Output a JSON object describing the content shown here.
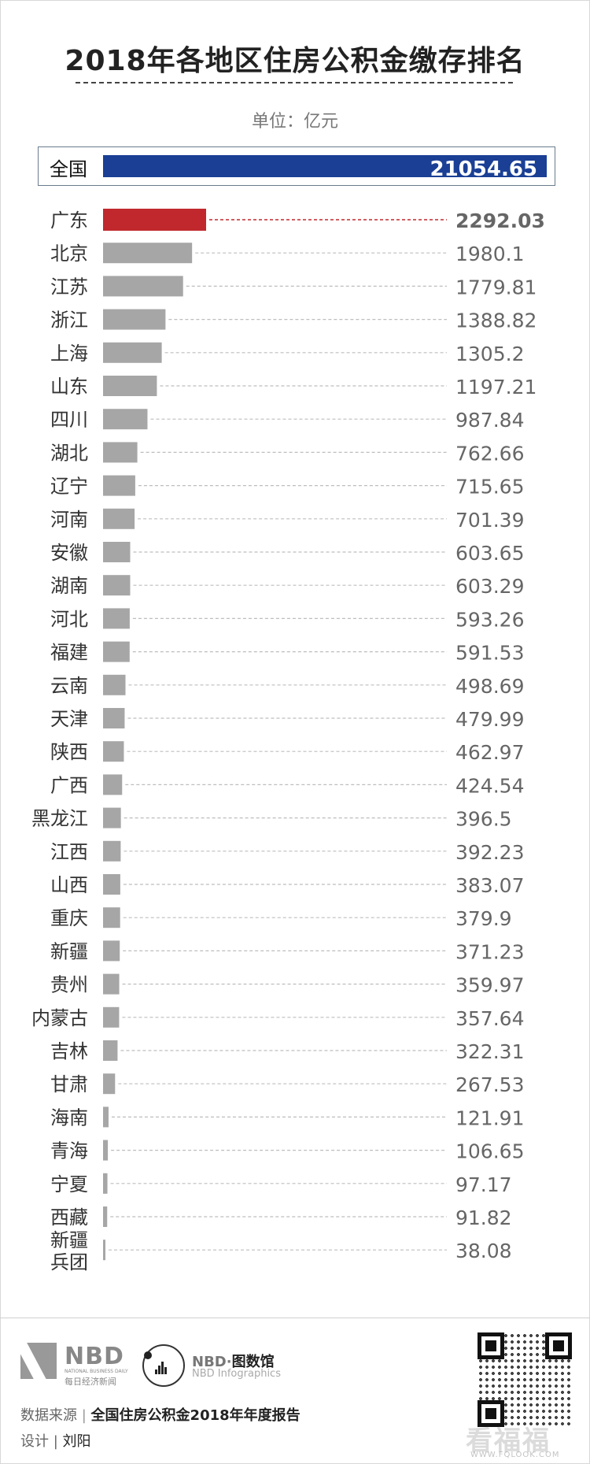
{
  "title": "2018年各地区住房公积金缴存排名",
  "unit": "单位：亿元",
  "total": {
    "label": "全国",
    "value": "21054.65"
  },
  "colors": {
    "total_bar": "#1a3f95",
    "highlight": "#c0282d",
    "bar": "#a6a6a6"
  },
  "chart_data": {
    "type": "bar",
    "orientation": "horizontal",
    "categories": [
      "广东",
      "北京",
      "江苏",
      "浙江",
      "上海",
      "山东",
      "四川",
      "湖北",
      "辽宁",
      "河南",
      "安徽",
      "湖南",
      "河北",
      "福建",
      "云南",
      "天津",
      "陕西",
      "广西",
      "黑龙江",
      "江西",
      "山西",
      "重庆",
      "新疆",
      "贵州",
      "内蒙古",
      "吉林",
      "甘肃",
      "海南",
      "青海",
      "宁夏",
      "西藏",
      "新疆兵团"
    ],
    "labels": [
      "广东",
      "北京",
      "江苏",
      "浙江",
      "上海",
      "山东",
      "四川",
      "湖北",
      "辽宁",
      "河南",
      "安徽",
      "湖南",
      "河北",
      "福建",
      "云南",
      "天津",
      "陕西",
      "广西",
      "黑龙江",
      "江西",
      "山西",
      "重庆",
      "新疆",
      "贵州",
      "内蒙古",
      "吉林",
      "甘肃",
      "海南",
      "青海",
      "宁夏",
      "西藏",
      "新疆\n兵团"
    ],
    "values": [
      2292.03,
      1980.1,
      1779.81,
      1388.82,
      1305.2,
      1197.21,
      987.84,
      762.66,
      715.65,
      701.39,
      603.65,
      603.29,
      593.26,
      591.53,
      498.69,
      479.99,
      462.97,
      424.54,
      396.5,
      392.23,
      383.07,
      379.9,
      371.23,
      359.97,
      357.64,
      322.31,
      267.53,
      121.91,
      106.65,
      97.17,
      91.82,
      38.08
    ],
    "value_labels": [
      "2292.03",
      "1980.1",
      "1779.81",
      "1388.82",
      "1305.2",
      "1197.21",
      "987.84",
      "762.66",
      "715.65",
      "701.39",
      "603.65",
      "603.29",
      "593.26",
      "591.53",
      "498.69",
      "479.99",
      "462.97",
      "424.54",
      "396.5",
      "392.23",
      "383.07",
      "379.9",
      "371.23",
      "359.97",
      "357.64",
      "322.31",
      "267.53",
      "121.91",
      "106.65",
      "97.17",
      "91.82",
      "38.08"
    ],
    "highlight_index": 0,
    "xlim": [
      0,
      2292.03
    ]
  },
  "footer": {
    "logo_nbd": "NBD",
    "logo_nbd_en": "NATIONAL BUSINESS DAILY",
    "logo_nbd_cn": "每日经济新闻",
    "brand_prefix": "NBD·",
    "brand_cn": "图数馆",
    "brand_en": "NBD Infographics",
    "source_label": "数据来源",
    "source_sep": "|",
    "source_value": "全国住房公积金2018年年度报告",
    "designer_label": "设计",
    "designer_sep": "|",
    "designer_value": "刘阳",
    "watermark": "看福福",
    "watermark_sub": "WWW.FQLOOK.COM"
  }
}
